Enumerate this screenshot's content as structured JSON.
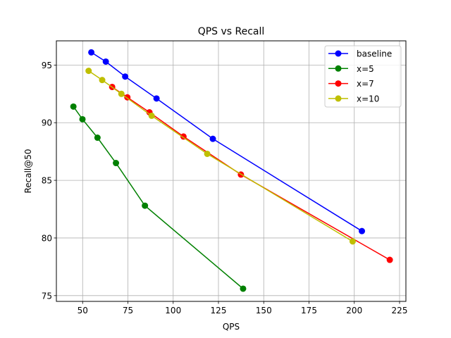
{
  "chart_data": {
    "type": "line",
    "title": "QPS vs Recall",
    "xlabel": "QPS",
    "ylabel": "Recall@50",
    "xlim": [
      35.5,
      228.5
    ],
    "ylim": [
      74.5,
      97.1
    ],
    "xticks": [
      50,
      75,
      100,
      125,
      150,
      175,
      200,
      225
    ],
    "yticks": [
      75,
      80,
      85,
      90,
      95
    ],
    "grid": true,
    "legend_position": "top-right",
    "series": [
      {
        "name": "baseline",
        "color": "#0000ff",
        "marker": "circle",
        "points": [
          [
            54.8,
            96.1
          ],
          [
            62.8,
            95.3
          ],
          [
            73.5,
            94.0
          ],
          [
            90.8,
            92.1
          ],
          [
            121.9,
            88.6
          ],
          [
            204.2,
            80.6
          ]
        ]
      },
      {
        "name": "x=5",
        "color": "#008000",
        "marker": "circle",
        "points": [
          [
            44.9,
            91.4
          ],
          [
            49.9,
            90.3
          ],
          [
            58.2,
            88.7
          ],
          [
            68.4,
            86.5
          ],
          [
            84.4,
            82.8
          ],
          [
            138.6,
            75.6
          ]
        ]
      },
      {
        "name": "x=7",
        "color": "#ff0000",
        "marker": "circle",
        "points": [
          [
            66.3,
            93.1
          ],
          [
            74.7,
            92.2
          ],
          [
            86.9,
            90.9
          ],
          [
            105.7,
            88.8
          ],
          [
            137.4,
            85.5
          ],
          [
            219.6,
            78.1
          ]
        ]
      },
      {
        "name": "x=10",
        "color": "#bfbf00",
        "marker": "circle",
        "points": [
          [
            53.3,
            94.5
          ],
          [
            60.8,
            93.7
          ],
          [
            71.4,
            92.5
          ],
          [
            88.1,
            90.6
          ],
          [
            118.8,
            87.3
          ],
          [
            199.1,
            79.7
          ]
        ]
      }
    ]
  }
}
